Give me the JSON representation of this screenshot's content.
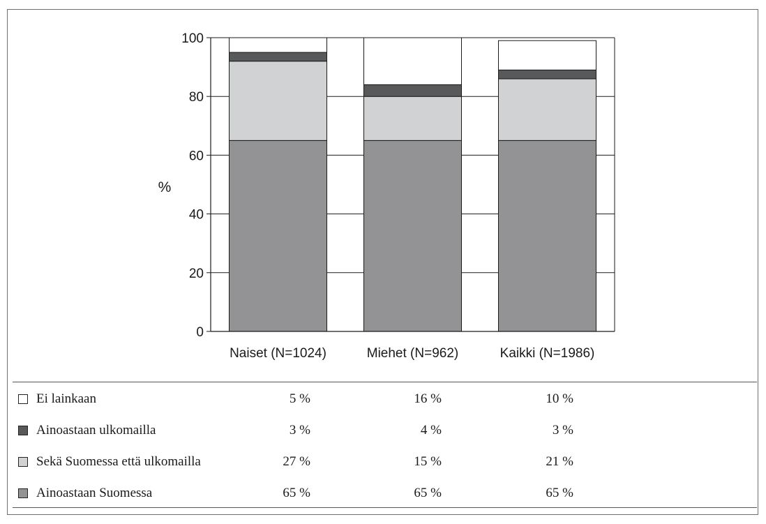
{
  "chart_data": {
    "type": "bar",
    "stacked": true,
    "categories": [
      "Naiset (N=1024)",
      "Miehet (N=962)",
      "Kaikki (N=1986)"
    ],
    "series": [
      {
        "name": "Ainoastaan Suomessa",
        "values": [
          65,
          65,
          65
        ],
        "color": "#939396"
      },
      {
        "name": "Sekä Suomessa että ulkomailla",
        "values": [
          27,
          15,
          21
        ],
        "color": "#d1d2d4"
      },
      {
        "name": "Ainoastaan ulkomailla",
        "values": [
          3,
          4,
          3
        ],
        "color": "#58595b"
      },
      {
        "name": "Ei lainkaan",
        "values": [
          5,
          16,
          10
        ],
        "color": "#ffffff"
      }
    ],
    "ylabel": "%",
    "xlabel": "",
    "ylim": [
      0,
      100
    ],
    "yticks": [
      0,
      20,
      40,
      60,
      80,
      100
    ],
    "grid": true
  },
  "table": {
    "rows": [
      {
        "label": "Ei lainkaan",
        "color": "#ffffff",
        "values": [
          "5 %",
          "16 %",
          "10 %"
        ]
      },
      {
        "label": "Ainoastaan ulkomailla",
        "color": "#58595b",
        "values": [
          "3 %",
          "4 %",
          "3 %"
        ]
      },
      {
        "label": "Sekä Suomessa että ulkomailla",
        "color": "#d1d2d4",
        "values": [
          "27 %",
          "15 %",
          "21 %"
        ]
      },
      {
        "label": "Ainoastaan Suomessa",
        "color": "#939396",
        "values": [
          "65 %",
          "65 %",
          "65 %"
        ]
      }
    ]
  }
}
